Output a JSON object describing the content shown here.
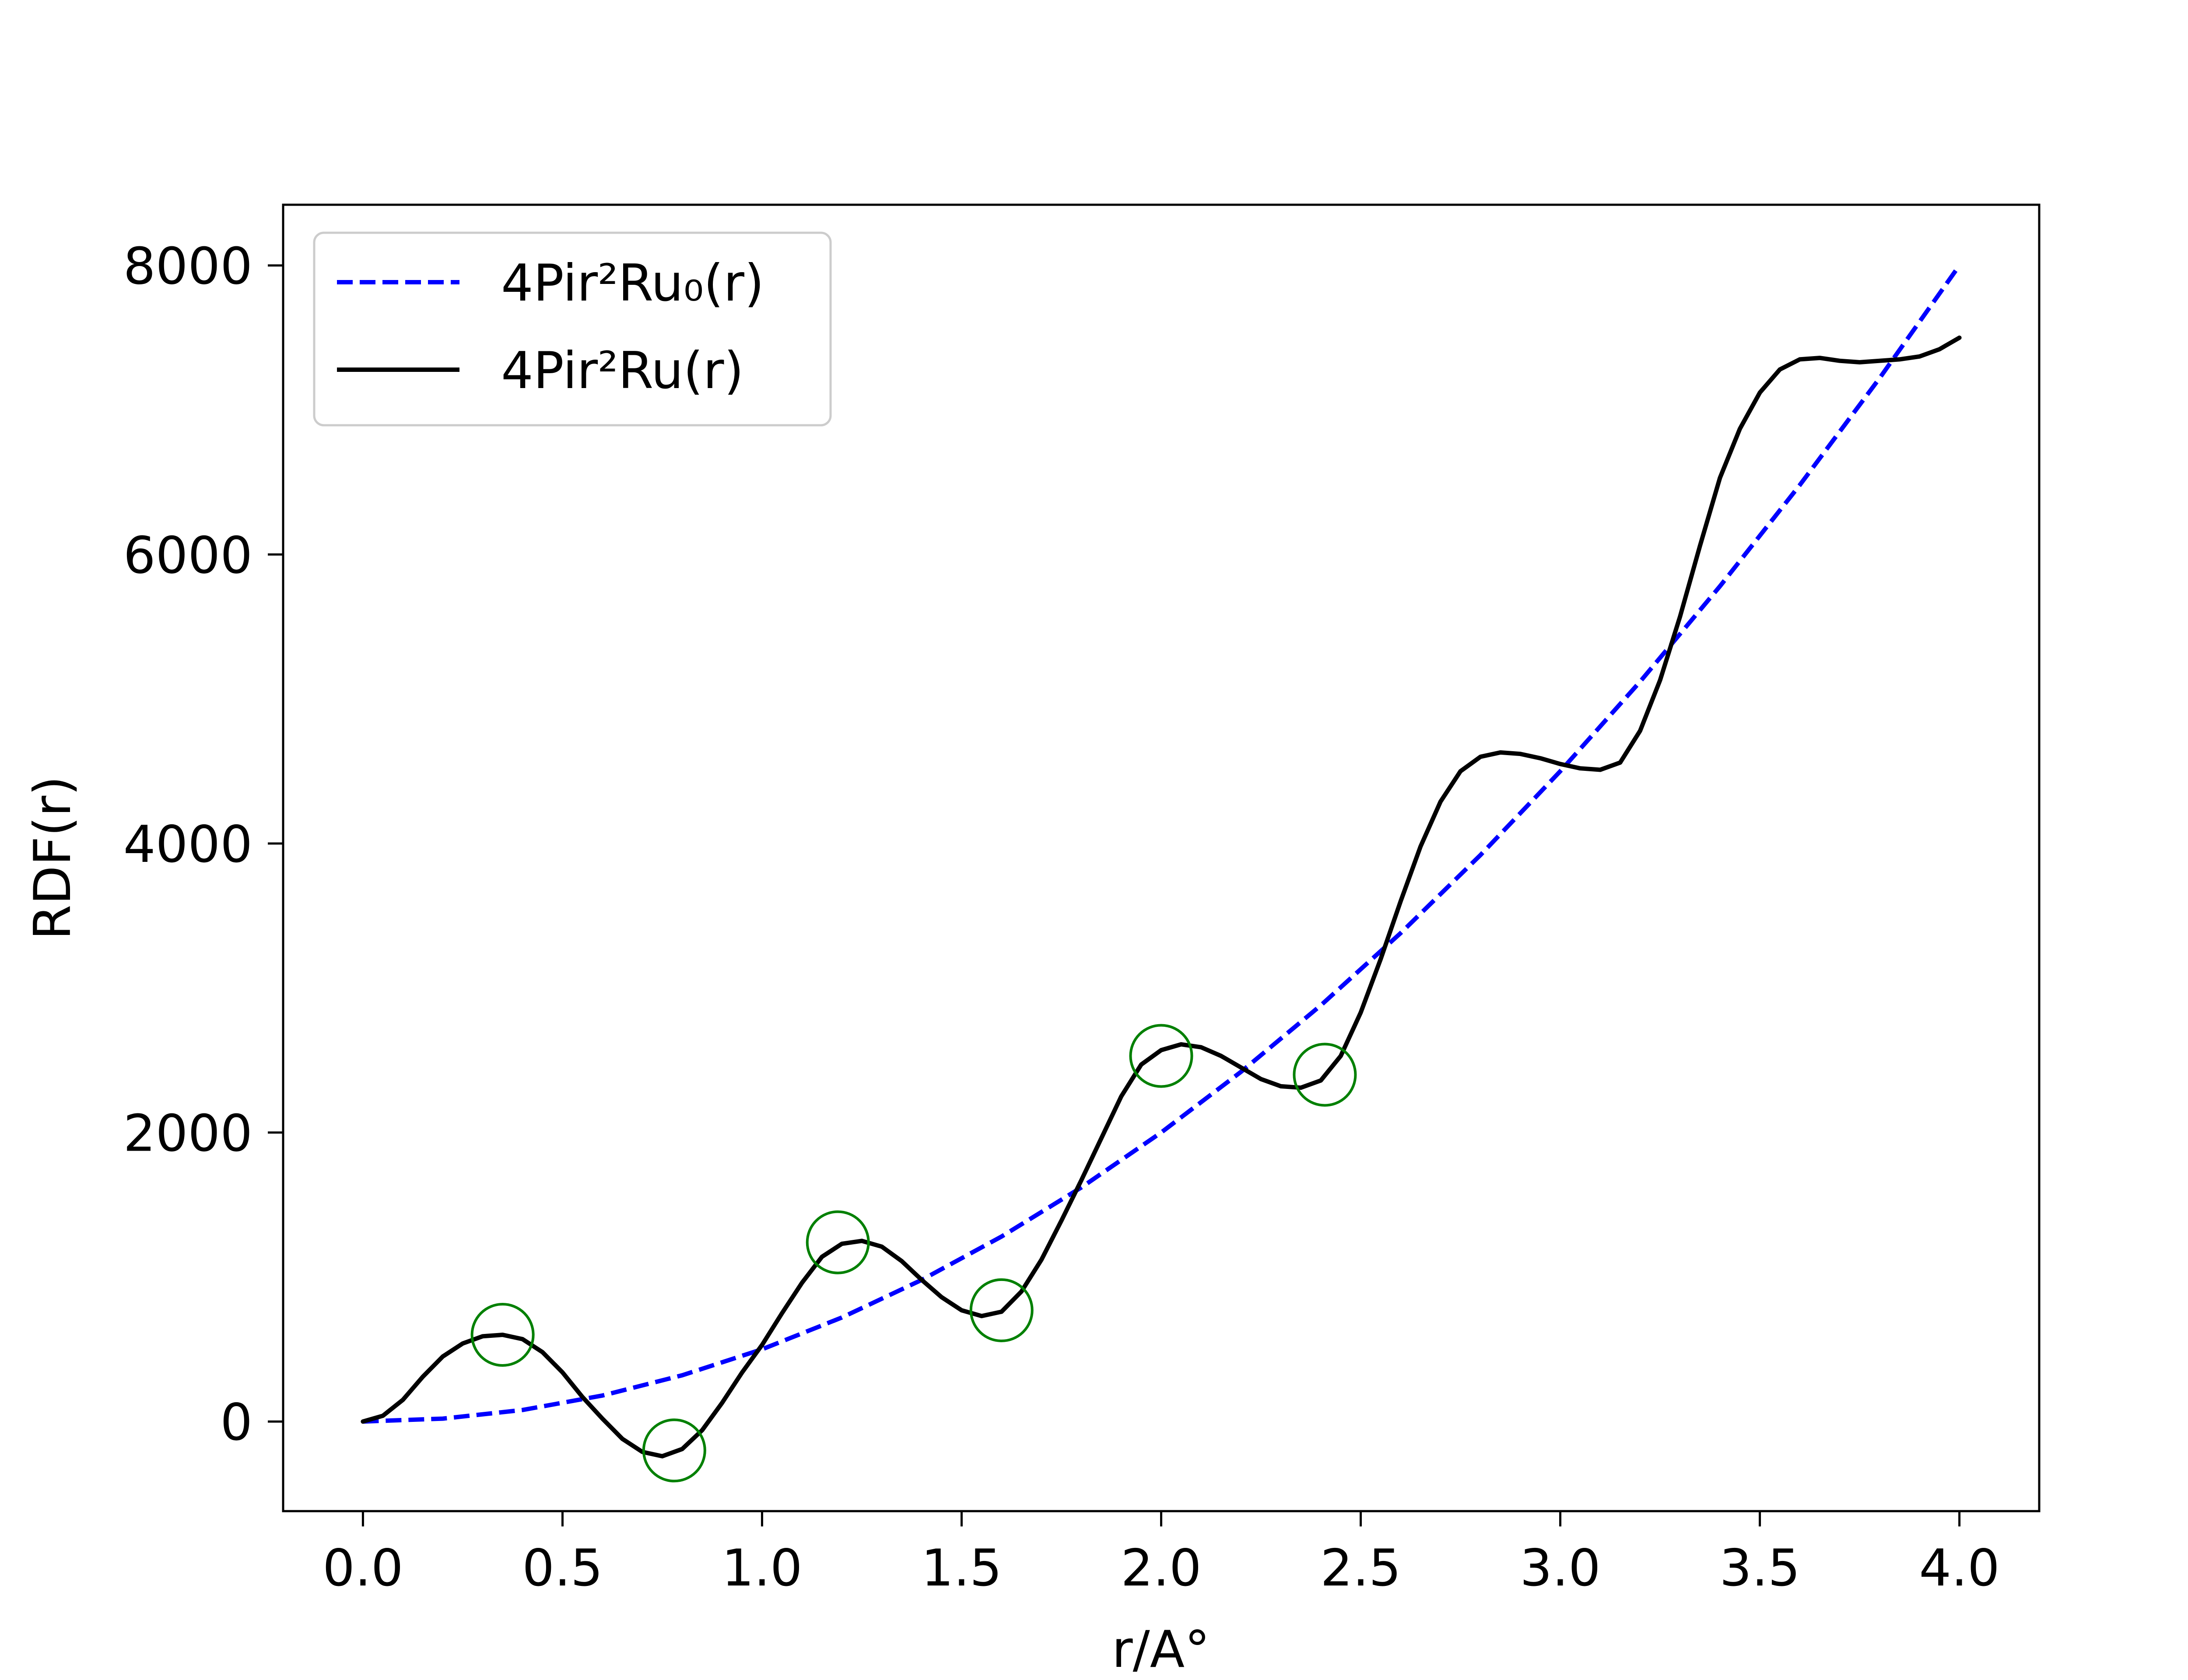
{
  "chart_data": {
    "type": "line",
    "xlabel": "r/A°",
    "ylabel": "RDF(r)",
    "xlim": [
      -0.2,
      4.2
    ],
    "ylim": [
      -620,
      8420
    ],
    "xticks": [
      0.0,
      0.5,
      1.0,
      1.5,
      2.0,
      2.5,
      3.0,
      3.5,
      4.0
    ],
    "xtick_labels": [
      "0.0",
      "0.5",
      "1.0",
      "1.5",
      "2.0",
      "2.5",
      "3.0",
      "3.5",
      "4.0"
    ],
    "yticks": [
      0,
      2000,
      4000,
      6000,
      8000
    ],
    "ytick_labels": [
      "0",
      "2000",
      "4000",
      "6000",
      "8000"
    ],
    "grid": false,
    "legend_position": "top-left",
    "series": [
      {
        "name": "4Pir²Ru₀(r)",
        "style": "dashed",
        "color": "#0000ff",
        "x": [
          0.0,
          0.2,
          0.4,
          0.6,
          0.8,
          1.0,
          1.2,
          1.4,
          1.6,
          1.8,
          2.0,
          2.2,
          2.4,
          2.6,
          2.8,
          3.0,
          3.2,
          3.4,
          3.6,
          3.8,
          4.0
        ],
        "y": [
          0,
          20,
          80,
          180,
          320,
          500,
          720,
          980,
          1280,
          1620,
          2000,
          2420,
          2880,
          3380,
          3920,
          4500,
          5120,
          5780,
          6480,
          7220,
          8000
        ]
      },
      {
        "name": "4Pir²Ru(r)",
        "style": "solid",
        "color": "#000000",
        "x": [
          0.0,
          0.05,
          0.1,
          0.15,
          0.2,
          0.25,
          0.3,
          0.35,
          0.4,
          0.45,
          0.5,
          0.55,
          0.6,
          0.65,
          0.7,
          0.75,
          0.8,
          0.85,
          0.9,
          0.95,
          1.0,
          1.05,
          1.1,
          1.15,
          1.2,
          1.25,
          1.3,
          1.35,
          1.4,
          1.45,
          1.5,
          1.55,
          1.6,
          1.65,
          1.7,
          1.75,
          1.8,
          1.85,
          1.9,
          1.95,
          2.0,
          2.05,
          2.1,
          2.15,
          2.2,
          2.25,
          2.3,
          2.35,
          2.4,
          2.45,
          2.5,
          2.55,
          2.6,
          2.65,
          2.7,
          2.75,
          2.8,
          2.85,
          2.9,
          2.95,
          3.0,
          3.05,
          3.1,
          3.15,
          3.2,
          3.25,
          3.3,
          3.35,
          3.4,
          3.45,
          3.5,
          3.55,
          3.6,
          3.65,
          3.7,
          3.75,
          3.8,
          3.85,
          3.9,
          3.95,
          4.0
        ],
        "y": [
          0,
          40,
          150,
          310,
          450,
          540,
          590,
          600,
          570,
          480,
          340,
          170,
          20,
          -120,
          -210,
          -240,
          -190,
          -60,
          130,
          340,
          530,
          750,
          960,
          1140,
          1230,
          1250,
          1210,
          1110,
          980,
          860,
          770,
          730,
          760,
          900,
          1120,
          1390,
          1670,
          1960,
          2250,
          2470,
          2570,
          2610,
          2590,
          2530,
          2450,
          2370,
          2320,
          2310,
          2360,
          2530,
          2830,
          3200,
          3600,
          3980,
          4290,
          4500,
          4600,
          4630,
          4620,
          4590,
          4550,
          4520,
          4510,
          4560,
          4780,
          5130,
          5570,
          6060,
          6530,
          6870,
          7120,
          7280,
          7350,
          7360,
          7340,
          7330,
          7340,
          7350,
          7370,
          7420,
          7500
        ]
      }
    ],
    "markers": {
      "style": "hollow-circle",
      "color": "#008000",
      "x": [
        0.35,
        0.78,
        1.19,
        1.6,
        2.0,
        2.41
      ],
      "y": [
        600,
        -200,
        1240,
        770,
        2530,
        2400
      ]
    }
  }
}
